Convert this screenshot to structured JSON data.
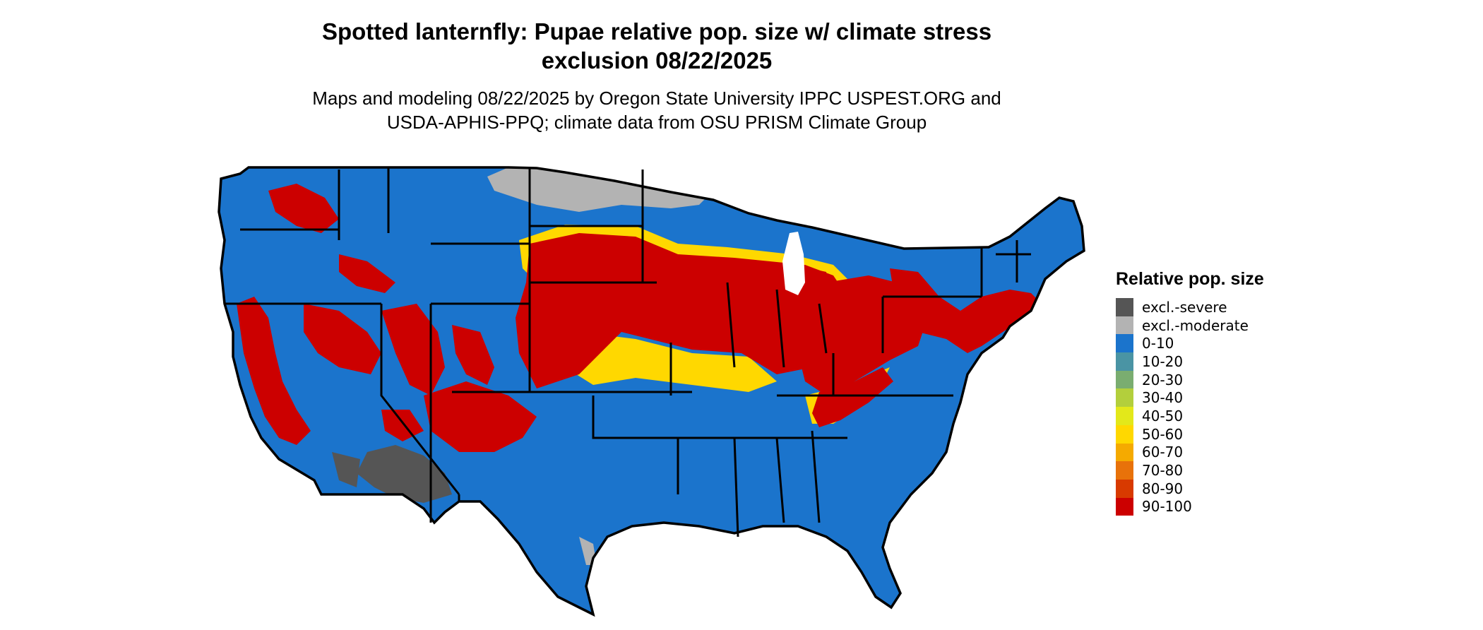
{
  "header": {
    "title_line1": "Spotted lanternfly: Pupae relative pop. size w/ climate stress",
    "title_line2": "exclusion 08/22/2025",
    "subtitle_line1": "Maps and modeling 08/22/2025 by Oregon State University IPPC USPEST.ORG and",
    "subtitle_line2": "USDA-APHIS-PPQ; climate data from OSU PRISM Climate Group"
  },
  "legend": {
    "title": "Relative pop. size",
    "items": [
      {
        "label": "excl.-severe",
        "color": "#555555"
      },
      {
        "label": "excl.-moderate",
        "color": "#b3b3b3"
      },
      {
        "label": "0-10",
        "color": "#1b74cc"
      },
      {
        "label": "10-20",
        "color": "#4a94a4"
      },
      {
        "label": "20-30",
        "color": "#7aad70"
      },
      {
        "label": "30-40",
        "color": "#b3cf3c"
      },
      {
        "label": "40-50",
        "color": "#e3e81a"
      },
      {
        "label": "50-60",
        "color": "#ffd800"
      },
      {
        "label": "60-70",
        "color": "#f5aa00"
      },
      {
        "label": "70-80",
        "color": "#e8720a"
      },
      {
        "label": "80-90",
        "color": "#d83a00"
      },
      {
        "label": "90-100",
        "color": "#cc0000"
      }
    ]
  },
  "map": {
    "base_color": "#1b74cc",
    "hot_color": "#cc0000",
    "warm_color": "#ffd800",
    "excl_moderate_color": "#b3b3b3",
    "excl_severe_color": "#555555",
    "border_color": "#000000"
  }
}
